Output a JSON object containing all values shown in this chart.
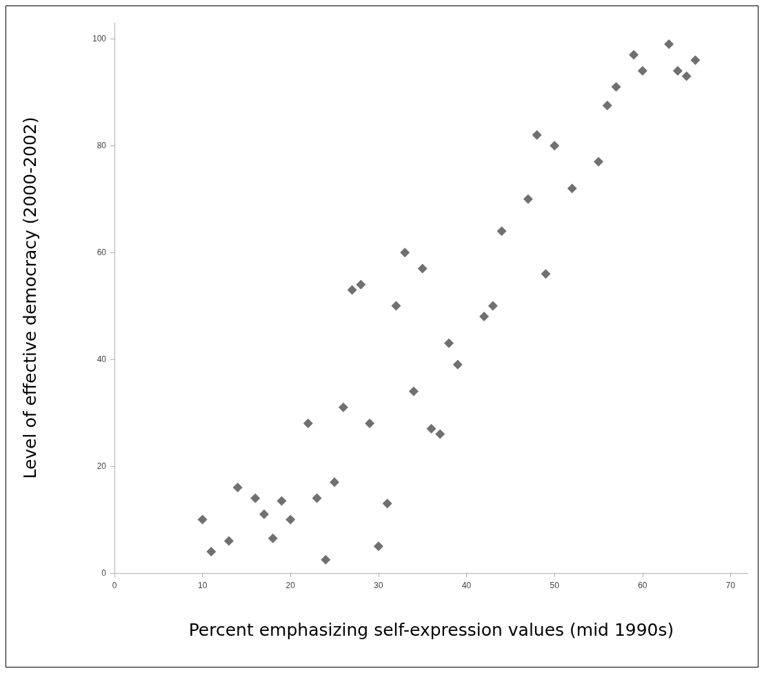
{
  "chart_data": {
    "type": "scatter",
    "xlabel": "Percent emphasizing self-expression values (mid 1990s)",
    "ylabel": "Level of effective democracy (2000-2002)",
    "x": [
      10,
      11,
      13,
      14,
      16,
      17,
      18,
      19,
      20,
      22,
      23,
      24,
      25,
      26,
      27,
      28,
      29,
      30,
      31,
      32,
      33,
      34,
      35,
      36,
      37,
      38,
      39,
      42,
      43,
      44,
      47,
      48,
      49,
      50,
      52,
      55,
      56,
      57,
      59,
      60,
      63,
      64,
      65,
      66
    ],
    "values": [
      10,
      4,
      6,
      16,
      14,
      11,
      6.5,
      13.5,
      10,
      28,
      14,
      2.5,
      17,
      31,
      53,
      54,
      28,
      5,
      13,
      50,
      60,
      34,
      57,
      27,
      26,
      43,
      39,
      48,
      50,
      64,
      70,
      82,
      56,
      80,
      72,
      77,
      87.5,
      91,
      97,
      94,
      99,
      94,
      93,
      96
    ],
    "color": "#707070",
    "marker": "diamond",
    "xlim": [
      0,
      72
    ],
    "xticks": [
      0,
      10,
      20,
      30,
      40,
      50,
      60,
      70
    ],
    "ylim": [
      0,
      103
    ],
    "yticks": [
      0,
      20,
      40,
      60,
      80,
      100
    ],
    "grid": false
  }
}
